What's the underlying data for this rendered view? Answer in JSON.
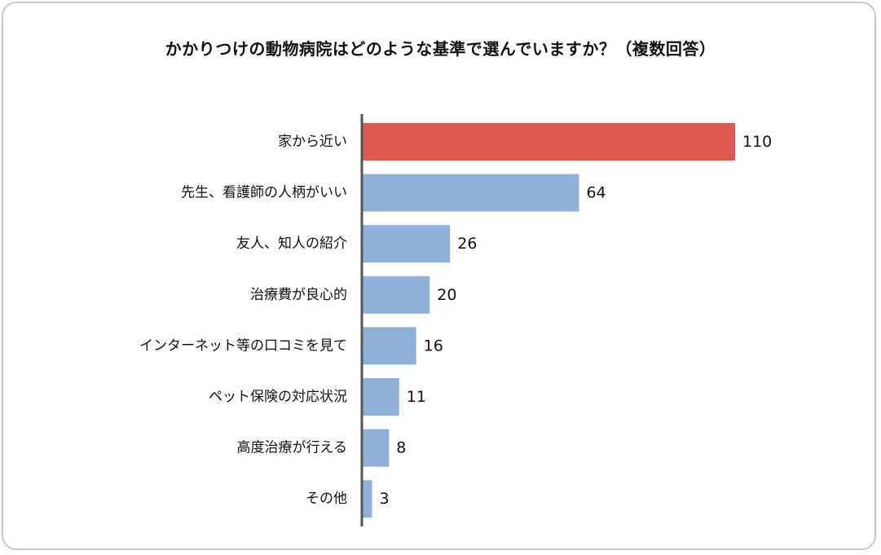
{
  "chart_data": {
    "type": "bar",
    "orientation": "horizontal",
    "title": "かかりつけの動物病院はどのような基準で選んでいますか？（複数回答）",
    "categories": [
      "家から近い",
      "先生、看護師の人柄がいい",
      "友人、知人の紹介",
      "治療費が良心的",
      "インターネット等の口コミを見て",
      "ペット保険の対応状況",
      "高度治療が行える",
      "その他"
    ],
    "values": [
      110,
      64,
      26,
      20,
      16,
      11,
      8,
      3
    ],
    "xlim": [
      0,
      110
    ],
    "grid": false,
    "legend": "none",
    "highlight_index": 0,
    "colors": {
      "highlight": "#e05a4f",
      "bar": "#8fb1d9",
      "axis": "#555555",
      "text": "#111111"
    }
  }
}
